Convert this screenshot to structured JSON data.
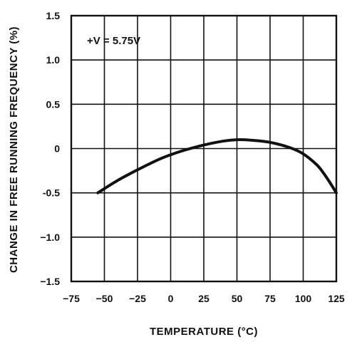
{
  "chart_data": {
    "type": "line",
    "title": "",
    "xlabel": "TEMPERATURE (°C)",
    "ylabel": "CHANGE IN FREE RUNNING FREQUENCY (%)",
    "xlim": [
      -75,
      125
    ],
    "ylim": [
      -1.5,
      1.5
    ],
    "x_ticks": [
      -75,
      -50,
      -25,
      0,
      25,
      50,
      75,
      100,
      125
    ],
    "y_ticks": [
      1.5,
      1.0,
      0.5,
      0,
      -0.5,
      -1.0,
      -1.5
    ],
    "x_tick_labels": [
      "−75",
      "−50",
      "−25",
      "0",
      "25",
      "50",
      "75",
      "100",
      "125"
    ],
    "y_tick_labels": [
      "1.5",
      "1.0",
      "0.5",
      "0",
      "-0.5",
      "−1.0",
      "−1.5"
    ],
    "grid": true,
    "annotation": "+V = 5.75V",
    "series": [
      {
        "x": [
          -55,
          -40,
          -25,
          -10,
          0,
          10,
          25,
          40,
          50,
          60,
          75,
          90,
          100,
          110,
          115,
          120,
          125
        ],
        "y": [
          -0.5,
          -0.36,
          -0.24,
          -0.13,
          -0.07,
          -0.02,
          0.04,
          0.085,
          0.1,
          0.095,
          0.07,
          0.01,
          -0.06,
          -0.18,
          -0.27,
          -0.38,
          -0.5
        ]
      }
    ]
  }
}
